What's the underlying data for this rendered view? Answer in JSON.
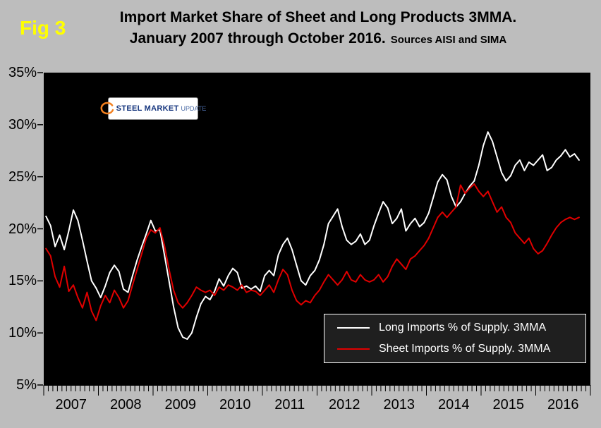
{
  "header": {
    "fig_label": "Fig 3",
    "title_line1": "Import Market Share of Sheet and Long Products 3MMA.",
    "title_line2": "January 2007 through October 2016.",
    "sources": "Sources AISI and SIMA"
  },
  "logo": {
    "steel": "STEEL",
    "market": "MARKET",
    "update": "UPDATE"
  },
  "chart_data": {
    "type": "line",
    "title": "Import Market Share of Sheet and Long Products 3MMA. January 2007 through October 2016.",
    "x_start": "2007-01",
    "x_end": "2016-10",
    "years": [
      "2007",
      "2008",
      "2009",
      "2010",
      "2011",
      "2012",
      "2013",
      "2014",
      "2015",
      "2016"
    ],
    "months_per_year": 12,
    "axis_categories_total": 120,
    "ylim": [
      5,
      35
    ],
    "yticks": [
      35,
      30,
      25,
      20,
      15,
      10,
      5
    ],
    "ytick_suffix": "%",
    "grid": false,
    "plot_background": "#000000",
    "page_background": "#bdbdbd",
    "legend_position": "inside-bottom-right",
    "series": [
      {
        "key": "long-imports-line",
        "name": "Long Imports % of Supply. 3MMA",
        "color": "#ffffff",
        "values": [
          21.2,
          20.3,
          18.3,
          19.4,
          18.0,
          19.8,
          21.8,
          20.8,
          18.9,
          16.9,
          15.0,
          14.3,
          13.4,
          14.5,
          15.8,
          16.5,
          15.9,
          14.2,
          13.9,
          15.5,
          17.0,
          18.3,
          19.5,
          20.8,
          19.8,
          19.9,
          17.5,
          15.0,
          12.5,
          10.5,
          9.6,
          9.4,
          10.0,
          11.5,
          12.8,
          13.5,
          13.2,
          14.0,
          15.2,
          14.5,
          15.5,
          16.2,
          15.8,
          14.3,
          14.5,
          14.2,
          14.5,
          14.0,
          15.5,
          16.0,
          15.5,
          17.5,
          18.5,
          19.1,
          18.0,
          16.5,
          15.0,
          14.6,
          15.5,
          16.0,
          17.0,
          18.5,
          20.5,
          21.2,
          21.9,
          20.2,
          18.9,
          18.5,
          18.8,
          19.5,
          18.5,
          18.9,
          20.3,
          21.5,
          22.6,
          22.0,
          20.5,
          21.0,
          21.9,
          19.8,
          20.5,
          21.0,
          20.2,
          20.6,
          21.5,
          23.0,
          24.5,
          25.2,
          24.7,
          23.1,
          22.1,
          22.6,
          23.4,
          24.1,
          24.6,
          26.1,
          28.0,
          29.3,
          28.4,
          26.9,
          25.4,
          24.6,
          25.1,
          26.1,
          26.6,
          25.6,
          26.4,
          26.1,
          26.6,
          27.1,
          25.6,
          25.9,
          26.6,
          27.0,
          27.6,
          26.9,
          27.2,
          26.6
        ]
      },
      {
        "key": "sheet-imports-line",
        "name": "Sheet Imports % of Supply. 3MMA",
        "color": "#e00000",
        "values": [
          18.1,
          17.4,
          15.4,
          14.4,
          16.4,
          14.0,
          14.6,
          13.4,
          12.4,
          13.9,
          12.1,
          11.2,
          12.6,
          13.6,
          12.9,
          14.1,
          13.4,
          12.4,
          13.1,
          14.6,
          16.1,
          17.6,
          19.1,
          19.9,
          19.6,
          20.1,
          18.4,
          16.1,
          14.1,
          12.9,
          12.4,
          12.9,
          13.6,
          14.4,
          14.1,
          13.9,
          14.1,
          13.6,
          14.4,
          14.1,
          14.6,
          14.4,
          14.1,
          14.6,
          13.9,
          14.1,
          14.0,
          13.6,
          14.1,
          14.6,
          13.9,
          15.1,
          16.1,
          15.6,
          14.1,
          13.1,
          12.7,
          13.1,
          12.9,
          13.6,
          14.1,
          14.9,
          15.6,
          15.1,
          14.6,
          15.1,
          15.9,
          15.1,
          14.9,
          15.6,
          15.1,
          14.9,
          15.1,
          15.6,
          14.9,
          15.4,
          16.4,
          17.1,
          16.6,
          16.1,
          17.1,
          17.4,
          17.9,
          18.4,
          19.1,
          20.1,
          21.1,
          21.6,
          21.1,
          21.6,
          22.1,
          24.2,
          23.4,
          23.9,
          24.3,
          23.6,
          23.1,
          23.6,
          22.6,
          21.6,
          22.1,
          21.1,
          20.6,
          19.6,
          19.1,
          18.6,
          19.1,
          18.1,
          17.6,
          17.9,
          18.6,
          19.4,
          20.1,
          20.6,
          20.9,
          21.1,
          20.9,
          21.1
        ]
      }
    ]
  }
}
